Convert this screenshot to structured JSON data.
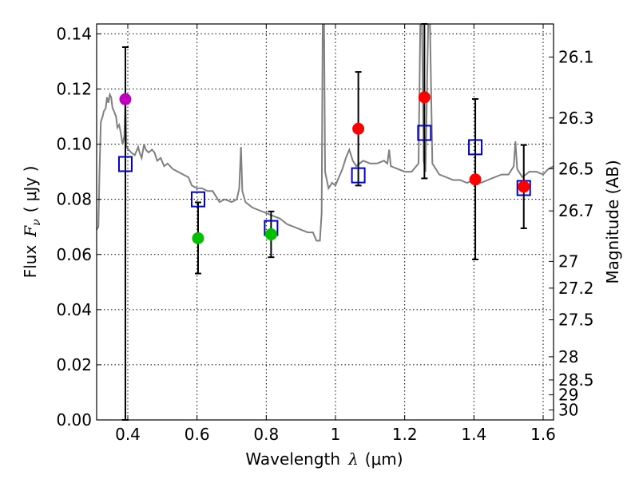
{
  "chart_data": {
    "type": "scatter",
    "xlabel_prefix": "Wavelength",
    "xlabel_symbol": "λ",
    "xlabel_unit": "(μm)",
    "ylabel_prefix": "Flux",
    "ylabel_symbol": "F",
    "ylabel_sub": "ν",
    "ylabel_unit": "( μJy )",
    "y2label": "Magnitude (AB)",
    "xlim": [
      0.31,
      1.63
    ],
    "ylim": [
      0.0,
      0.1436
    ],
    "grid": true,
    "x_ticks": [
      0.4,
      0.6,
      0.8,
      1.0,
      1.2,
      1.4,
      1.6
    ],
    "x_tick_labels": [
      "0.4",
      "0.6",
      "0.8",
      "1",
      "1.2",
      "1.4",
      "1.6"
    ],
    "y_ticks": [
      0.0,
      0.02,
      0.04,
      0.06,
      0.08,
      0.1,
      0.12,
      0.14
    ],
    "y_tick_labels": [
      "0.00",
      "0.02",
      "0.04",
      "0.06",
      "0.08",
      "0.10",
      "0.12",
      "0.14"
    ],
    "y2_ticks": [
      {
        "label": "26.1",
        "flux": 0.1316
      },
      {
        "label": "26.3",
        "flux": 0.1095
      },
      {
        "label": "26.5",
        "flux": 0.0911
      },
      {
        "label": "26.7",
        "flux": 0.0758
      },
      {
        "label": "27",
        "flux": 0.0575
      },
      {
        "label": "27.2",
        "flux": 0.0478
      },
      {
        "label": "27.5",
        "flux": 0.0363
      },
      {
        "label": "28",
        "flux": 0.0229
      },
      {
        "label": "28.5",
        "flux": 0.0145
      },
      {
        "label": "29",
        "flux": 0.0091
      },
      {
        "label": "30",
        "flux": 0.0036
      }
    ],
    "observed": [
      {
        "x": 0.393,
        "y": 0.1163,
        "err": [
          0.0,
          0.1352
        ],
        "color": "#c000c0"
      },
      {
        "x": 0.603,
        "y": 0.0659,
        "err": [
          0.0531,
          0.0789
        ],
        "color": "#00c000"
      },
      {
        "x": 0.814,
        "y": 0.0673,
        "err": [
          0.059,
          0.0756
        ],
        "color": "#00c000"
      },
      {
        "x": 1.066,
        "y": 0.1056,
        "err": [
          0.085,
          0.1262
        ],
        "color": "#ff0000"
      },
      {
        "x": 1.257,
        "y": 0.117,
        "err": [
          0.0876,
          0.1436
        ],
        "color": "#ff0000"
      },
      {
        "x": 1.404,
        "y": 0.0872,
        "err": [
          0.0582,
          0.1164
        ],
        "color": "#ff0000"
      },
      {
        "x": 1.544,
        "y": 0.0846,
        "err": [
          0.0695,
          0.0997
        ],
        "color": "#ff0000"
      }
    ],
    "model": [
      {
        "x": 0.393,
        "y": 0.0928
      },
      {
        "x": 0.603,
        "y": 0.08
      },
      {
        "x": 0.814,
        "y": 0.0696
      },
      {
        "x": 1.066,
        "y": 0.0887
      },
      {
        "x": 1.257,
        "y": 0.1041
      },
      {
        "x": 1.404,
        "y": 0.0989
      },
      {
        "x": 1.544,
        "y": 0.0841
      }
    ],
    "sed": [
      [
        0.31,
        0.069
      ],
      [
        0.315,
        0.07
      ],
      [
        0.318,
        0.089
      ],
      [
        0.322,
        0.108
      ],
      [
        0.327,
        0.11
      ],
      [
        0.331,
        0.112
      ],
      [
        0.336,
        0.113
      ],
      [
        0.34,
        0.117
      ],
      [
        0.344,
        0.115
      ],
      [
        0.348,
        0.118
      ],
      [
        0.352,
        0.117
      ],
      [
        0.356,
        0.113
      ],
      [
        0.36,
        0.112
      ],
      [
        0.366,
        0.11
      ],
      [
        0.37,
        0.106
      ],
      [
        0.375,
        0.107
      ],
      [
        0.38,
        0.104
      ],
      [
        0.385,
        0.1
      ],
      [
        0.39,
        0.103
      ],
      [
        0.393,
        0.116
      ],
      [
        0.396,
        0.099
      ],
      [
        0.402,
        0.098
      ],
      [
        0.41,
        0.097
      ],
      [
        0.42,
        0.096
      ],
      [
        0.43,
        0.099
      ],
      [
        0.434,
        0.097
      ],
      [
        0.44,
        0.095
      ],
      [
        0.447,
        0.1
      ],
      [
        0.452,
        0.098
      ],
      [
        0.46,
        0.097
      ],
      [
        0.47,
        0.098
      ],
      [
        0.477,
        0.097
      ],
      [
        0.485,
        0.094
      ],
      [
        0.495,
        0.095
      ],
      [
        0.505,
        0.092
      ],
      [
        0.515,
        0.093
      ],
      [
        0.53,
        0.091
      ],
      [
        0.545,
        0.09
      ],
      [
        0.56,
        0.089
      ],
      [
        0.575,
        0.088
      ],
      [
        0.585,
        0.085
      ],
      [
        0.6,
        0.084
      ],
      [
        0.615,
        0.084
      ],
      [
        0.63,
        0.083
      ],
      [
        0.645,
        0.083
      ],
      [
        0.655,
        0.081
      ],
      [
        0.665,
        0.079
      ],
      [
        0.68,
        0.08
      ],
      [
        0.7,
        0.079
      ],
      [
        0.715,
        0.08
      ],
      [
        0.722,
        0.084
      ],
      [
        0.727,
        0.099
      ],
      [
        0.731,
        0.083
      ],
      [
        0.74,
        0.079
      ],
      [
        0.76,
        0.077
      ],
      [
        0.78,
        0.076
      ],
      [
        0.8,
        0.075
      ],
      [
        0.82,
        0.074
      ],
      [
        0.84,
        0.073
      ],
      [
        0.86,
        0.071
      ],
      [
        0.88,
        0.07
      ],
      [
        0.9,
        0.069
      ],
      [
        0.92,
        0.068
      ],
      [
        0.935,
        0.068
      ],
      [
        0.945,
        0.065
      ],
      [
        0.955,
        0.065
      ],
      [
        0.96,
        0.075
      ],
      [
        0.963,
        0.144
      ],
      [
        0.967,
        0.144
      ],
      [
        0.97,
        0.09
      ],
      [
        0.98,
        0.084
      ],
      [
        0.99,
        0.086
      ],
      [
        1.0,
        0.085
      ],
      [
        1.01,
        0.088
      ],
      [
        1.02,
        0.091
      ],
      [
        1.03,
        0.095
      ],
      [
        1.04,
        0.098
      ],
      [
        1.05,
        0.094
      ],
      [
        1.06,
        0.092
      ],
      [
        1.08,
        0.094
      ],
      [
        1.1,
        0.093
      ],
      [
        1.12,
        0.093
      ],
      [
        1.14,
        0.094
      ],
      [
        1.15,
        0.093
      ],
      [
        1.155,
        0.098
      ],
      [
        1.16,
        0.092
      ],
      [
        1.18,
        0.091
      ],
      [
        1.2,
        0.09
      ],
      [
        1.22,
        0.09
      ],
      [
        1.24,
        0.093
      ],
      [
        1.245,
        0.144
      ],
      [
        1.25,
        0.144
      ],
      [
        1.255,
        0.094
      ],
      [
        1.26,
        0.09
      ],
      [
        1.268,
        0.144
      ],
      [
        1.273,
        0.144
      ],
      [
        1.28,
        0.093
      ],
      [
        1.3,
        0.089
      ],
      [
        1.32,
        0.088
      ],
      [
        1.34,
        0.087
      ],
      [
        1.36,
        0.087
      ],
      [
        1.38,
        0.086
      ],
      [
        1.4,
        0.087
      ],
      [
        1.42,
        0.086
      ],
      [
        1.44,
        0.087
      ],
      [
        1.46,
        0.088
      ],
      [
        1.48,
        0.089
      ],
      [
        1.5,
        0.089
      ],
      [
        1.515,
        0.092
      ],
      [
        1.52,
        0.101
      ],
      [
        1.525,
        0.091
      ],
      [
        1.54,
        0.088
      ],
      [
        1.56,
        0.09
      ],
      [
        1.58,
        0.09
      ],
      [
        1.6,
        0.089
      ],
      [
        1.615,
        0.091
      ],
      [
        1.63,
        0.092
      ]
    ]
  }
}
